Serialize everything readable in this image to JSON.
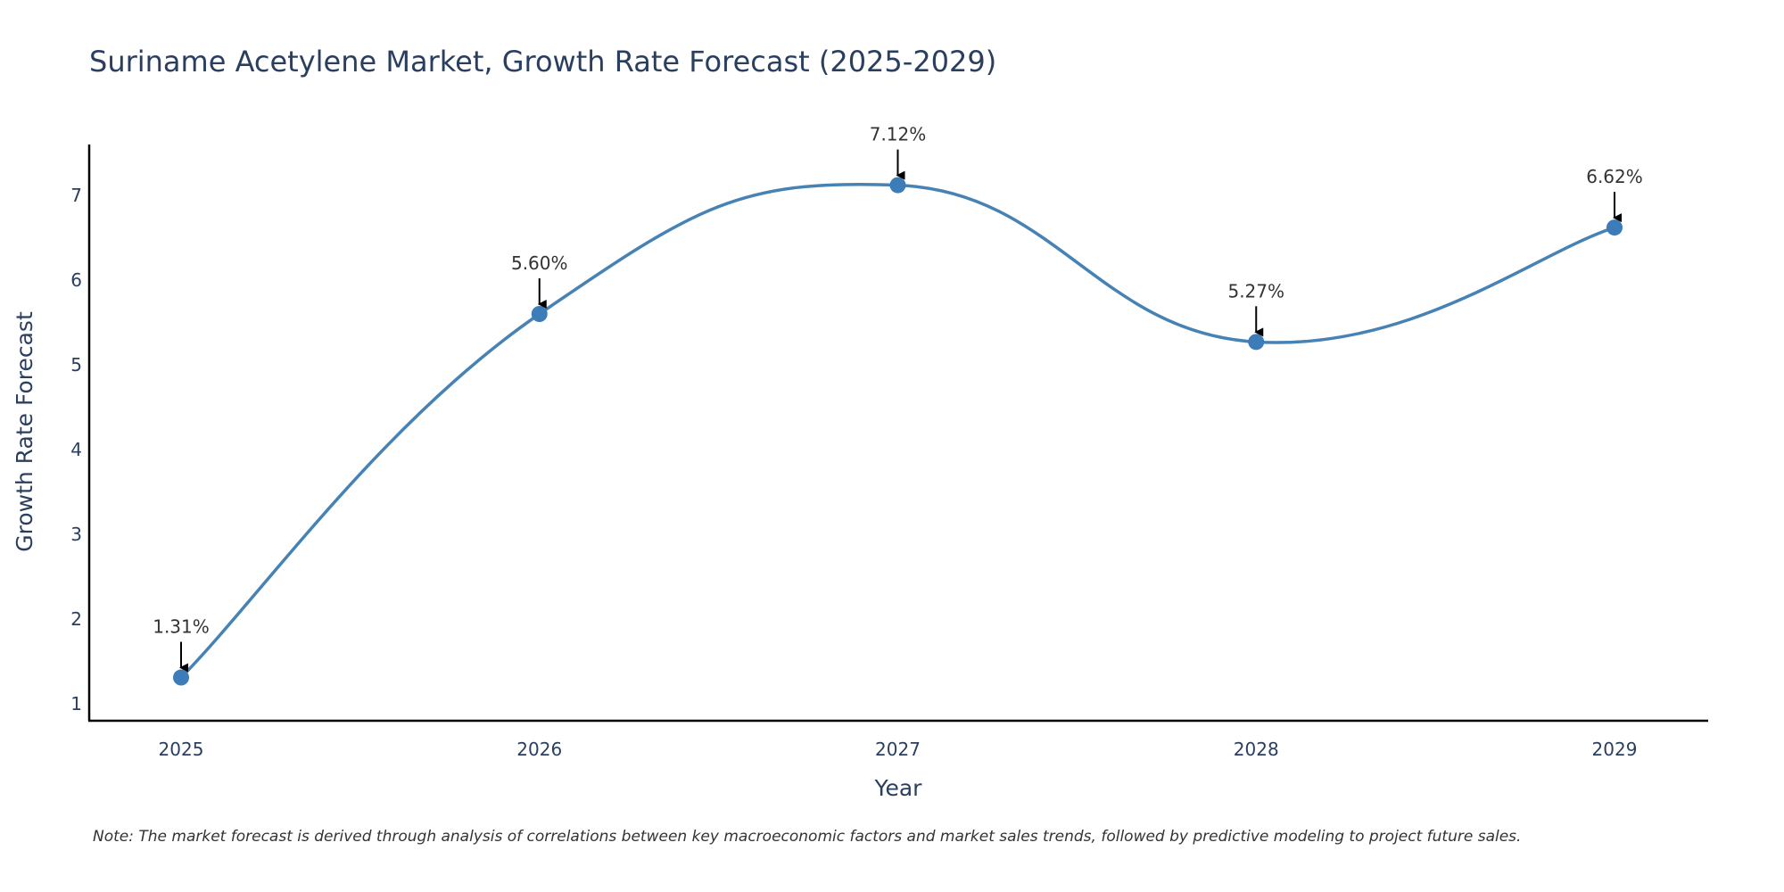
{
  "chart_data": {
    "type": "line",
    "title": "Suriname Acetylene Market, Growth Rate Forecast (2025-2029)",
    "xlabel": "Year",
    "ylabel": "Growth Rate Forecast",
    "categories": [
      "2025",
      "2026",
      "2027",
      "2028",
      "2029"
    ],
    "values": [
      1.31,
      5.6,
      7.12,
      5.27,
      6.62
    ],
    "data_labels": [
      "1.31%",
      "5.60%",
      "7.12%",
      "5.27%",
      "6.62%"
    ],
    "yticks": [
      1,
      2,
      3,
      4,
      5,
      6,
      7
    ],
    "ytick_labels": [
      "1",
      "2",
      "3",
      "4",
      "5",
      "6",
      "7"
    ],
    "ylim": [
      0.8,
      7.6
    ],
    "grid": false,
    "line_shape": "spline",
    "colors": {
      "line": "#4682b4",
      "marker": "#3c7cb8",
      "axis": "#000000",
      "arrow": "#000000"
    }
  },
  "note": "Note: The market forecast is derived through analysis of correlations between key macroeconomic factors and market sales trends, followed by predictive modeling to project future sales."
}
